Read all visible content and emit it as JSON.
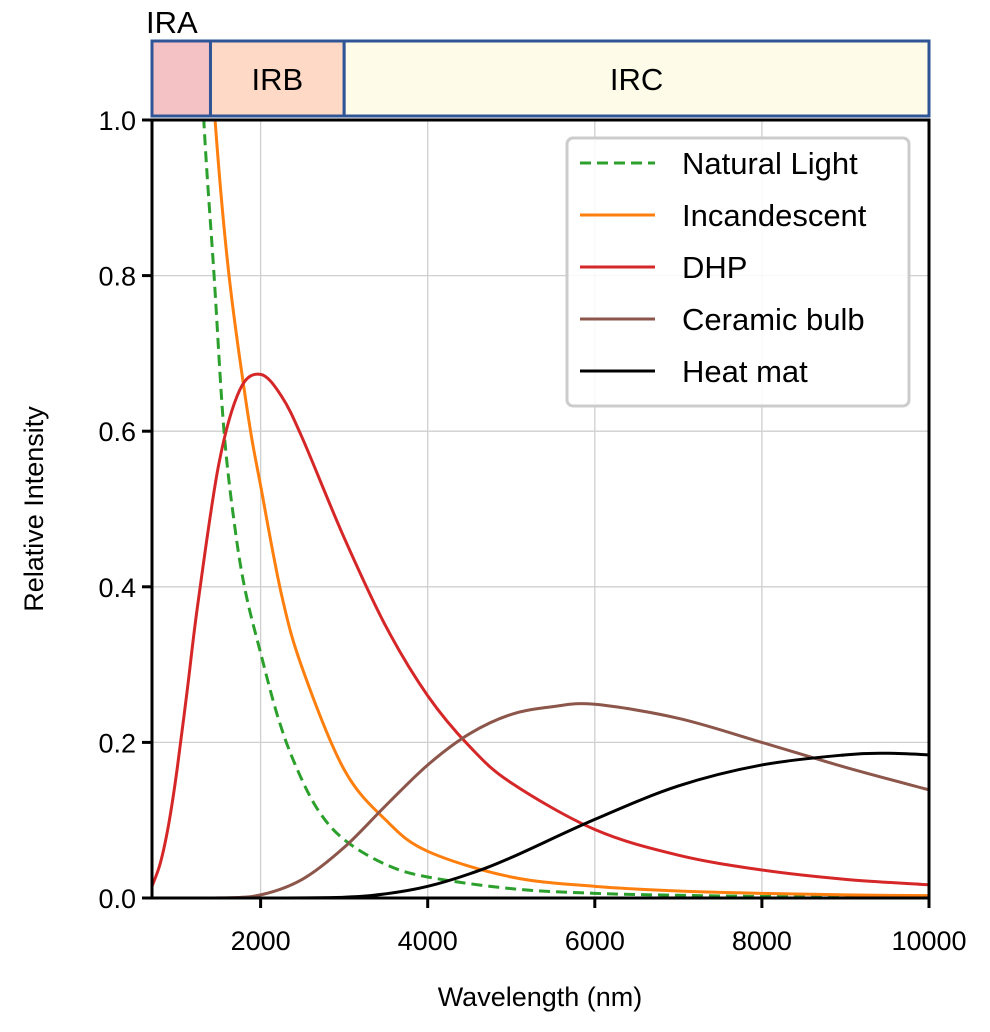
{
  "chart_data": {
    "type": "line",
    "title": "",
    "xlabel": "Wavelength (nm)",
    "ylabel": "Relative Intensity",
    "xlim": [
      700,
      10000
    ],
    "ylim": [
      0.0,
      1.0
    ],
    "grid": true,
    "legend_position": "top-right",
    "xticks": [
      2000,
      4000,
      6000,
      8000,
      10000
    ],
    "xtick_labels": [
      "2000",
      "4000",
      "6000",
      "8000",
      "10000"
    ],
    "yticks": [
      0.0,
      0.2,
      0.4,
      0.6,
      0.8,
      1.0
    ],
    "ytick_labels": [
      "0.0",
      "0.2",
      "0.4",
      "0.6",
      "0.8",
      "1.0"
    ],
    "bands": [
      {
        "label": "IRA",
        "start": 700,
        "end": 1400,
        "color": "#f4c2c4"
      },
      {
        "label": "IRB",
        "start": 1400,
        "end": 3000,
        "color": "#fdd9c6"
      },
      {
        "label": "IRC",
        "start": 3000,
        "end": 10000,
        "color": "#fefbe8"
      }
    ],
    "band_border_color": "#2f5597",
    "series": [
      {
        "name": "Natural Light",
        "color": "#2ca02c",
        "dashed": true,
        "x": [
          1250,
          1320,
          1443,
          1562,
          1700,
          1826,
          2000,
          2200,
          2400,
          2676,
          3000,
          3500,
          4000,
          5000,
          6000,
          7000,
          8000,
          9000,
          10000
        ],
        "y": [
          1.2,
          1.0,
          0.8,
          0.6,
          0.47,
          0.39,
          0.315,
          0.235,
          0.175,
          0.115,
          0.075,
          0.043,
          0.027,
          0.012,
          0.006,
          0.0035,
          0.002,
          0.0013,
          0.001
        ]
      },
      {
        "name": "Incandescent",
        "color": "#ff7f0e",
        "dashed": false,
        "x": [
          1350,
          1455,
          1622,
          1850,
          2000,
          2250,
          2500,
          3000,
          3500,
          4000,
          5000,
          6000,
          7000,
          8000,
          9000,
          10000
        ],
        "y": [
          1.2,
          1.0,
          0.8,
          0.62,
          0.53,
          0.39,
          0.295,
          0.165,
          0.1,
          0.06,
          0.027,
          0.015,
          0.009,
          0.006,
          0.004,
          0.003
        ]
      },
      {
        "name": "DHP",
        "color": "#d62728",
        "dashed": false,
        "x": [
          700,
          800,
          900,
          1000,
          1125,
          1250,
          1500,
          1750,
          2000,
          2250,
          2500,
          3000,
          3500,
          4000,
          4500,
          5000,
          6000,
          7000,
          8000,
          9000,
          10000
        ],
        "y": [
          0.015,
          0.045,
          0.095,
          0.165,
          0.27,
          0.379,
          0.558,
          0.653,
          0.673,
          0.645,
          0.591,
          0.463,
          0.349,
          0.26,
          0.195,
          0.148,
          0.088,
          0.055,
          0.036,
          0.024,
          0.017
        ]
      },
      {
        "name": "Ceramic bulb",
        "color": "#8c564b",
        "dashed": false,
        "x": [
          700,
          1500,
          2000,
          2500,
          3000,
          3500,
          4000,
          4500,
          5000,
          5500,
          6000,
          7000,
          8000,
          9000,
          10000
        ],
        "y": [
          0.0,
          0.0001,
          0.004,
          0.024,
          0.065,
          0.119,
          0.171,
          0.211,
          0.236,
          0.246,
          0.249,
          0.231,
          0.2,
          0.168,
          0.139
        ]
      },
      {
        "name": "Heat mat",
        "color": "#000000",
        "dashed": false,
        "x": [
          700,
          2000,
          3000,
          3500,
          4000,
          4500,
          5000,
          6000,
          7000,
          8000,
          9000,
          9500,
          10000
        ],
        "y": [
          0.0,
          0.0,
          0.001,
          0.0054,
          0.015,
          0.031,
          0.052,
          0.101,
          0.144,
          0.171,
          0.184,
          0.186,
          0.184
        ]
      }
    ]
  }
}
